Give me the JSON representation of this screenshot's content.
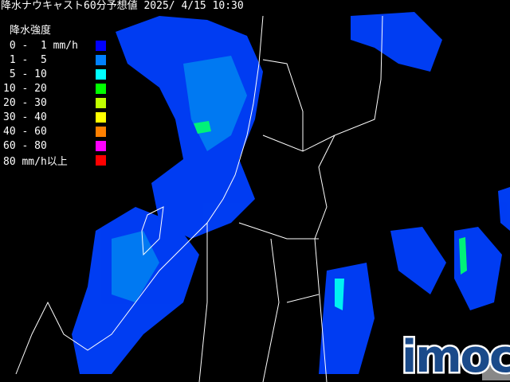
{
  "title": "降水ナウキャスト60分予想値 2025/ 4/15 10:30",
  "legend": {
    "heading": "降水強度",
    "items": [
      {
        "label": " 0 -  1 mm/h",
        "color": "#0000ff"
      },
      {
        "label": " 1 -  5",
        "color": "#0080ff"
      },
      {
        "label": " 5 - 10",
        "color": "#00ffff"
      },
      {
        "label": "10 - 20",
        "color": "#00ff00"
      },
      {
        "label": "20 - 30",
        "color": "#c0ff00"
      },
      {
        "label": "30 - 40",
        "color": "#ffff00"
      },
      {
        "label": "40 - 60",
        "color": "#ff8000"
      },
      {
        "label": "60 - 80",
        "color": "#ff00ff"
      },
      {
        "label": "80 mm/h以上",
        "color": "#ff0000"
      }
    ]
  },
  "logo": "imoc"
}
